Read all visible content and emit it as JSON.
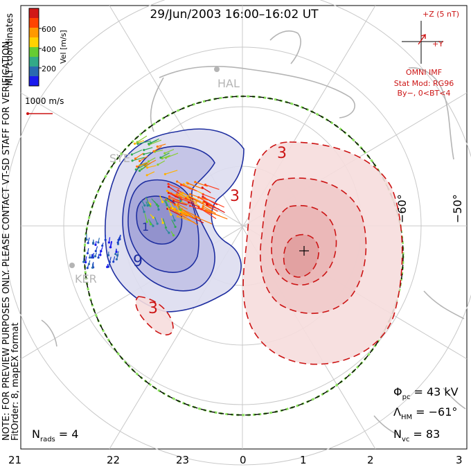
{
  "title": "29/Jun/2003 16:00–16:02 UT",
  "colorbar": {
    "label": "Vel [m/s]",
    "coords": "MLT coordinates",
    "ticks": [
      "600",
      "400",
      "200"
    ],
    "colors": [
      "#d01818",
      "#ff4400",
      "#ff9900",
      "#ffd200",
      "#66cc33",
      "#33aa88",
      "#2a6ab0",
      "#1a1aee"
    ]
  },
  "scale": {
    "label": "1000 m/s"
  },
  "imf": {
    "z_label": "+Z (5 nT)",
    "y_label": "+Y",
    "source": "OMNI IMF",
    "model": "Stat Mod: RG96",
    "condition": "By−, 0<BT<4"
  },
  "stations": {
    "hal": "HAL",
    "sye": "SYE",
    "ker": "KER"
  },
  "lat_labels": {
    "lat60": "−60°",
    "lat50": "−50°"
  },
  "contour_labels": {
    "pos1": "3",
    "pos2": "3",
    "pos3": "3",
    "neg1": "9",
    "neg2": "1"
  },
  "stats": {
    "phi_main": "Φ",
    "phi_sub": "pc",
    "phi_val": "= 43 kV",
    "lam_main": "Λ",
    "lam_sub": "HM",
    "lam_val": "= −61°",
    "nvc_main": "N",
    "nvc_sub": "vc",
    "nvc_val": "= 83",
    "nrads_main": "N",
    "nrads_sub": "rads",
    "nrads_val": "= 4"
  },
  "notes": {
    "line1": "NOTE: FOR PREVIEW PURPOSES ONLY. PLEASE CONTACT VT-SD STAFF FOR VERIFICATION.",
    "line2": "FitOrder: 8, mapEX format"
  },
  "mlt_labels": [
    "21",
    "22",
    "23",
    "0",
    "1",
    "2",
    "3"
  ]
}
